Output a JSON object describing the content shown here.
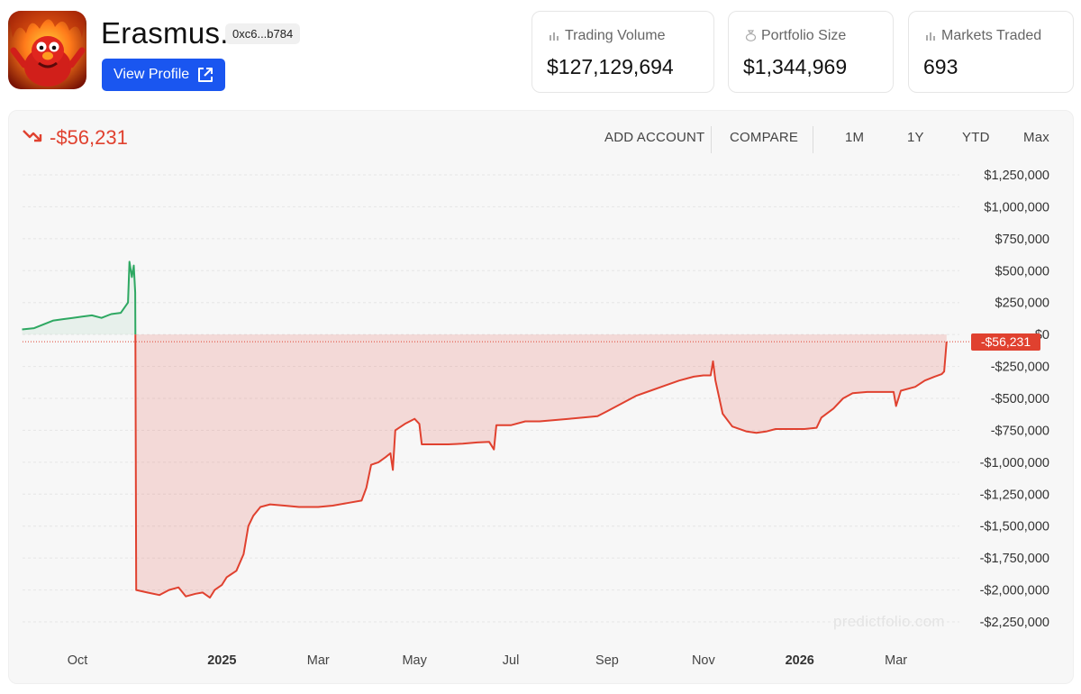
{
  "profile": {
    "name": "Erasmus.",
    "address": "0xc6...b784",
    "view_profile_label": "View Profile"
  },
  "stats": [
    {
      "label": "Trading Volume",
      "value": "$127,129,694",
      "icon": "bar-chart-icon"
    },
    {
      "label": "Portfolio Size",
      "value": "$1,344,969",
      "icon": "money-bag-icon"
    },
    {
      "label": "Markets Traded",
      "value": "693",
      "icon": "bar-chart-icon"
    }
  ],
  "pnl": {
    "change_text": "-$56,231",
    "trend_icon": "trend-down-icon",
    "negative_color": "#e0412f",
    "positive_color": "#2ea862"
  },
  "toolbar": {
    "add_account": "ADD ACCOUNT",
    "compare": "COMPARE",
    "ranges": [
      "1M",
      "1Y",
      "YTD",
      "Max"
    ]
  },
  "watermark": "predictfolio.com",
  "chart_data": {
    "type": "area",
    "current_value_label": "-$56,231",
    "y_ticks": [
      1250000,
      1000000,
      750000,
      500000,
      250000,
      0,
      -250000,
      -500000,
      -750000,
      -1000000,
      -1250000,
      -1500000,
      -1750000,
      -2000000,
      -2250000
    ],
    "y_tick_labels": [
      "$1,250,000",
      "$1,000,000",
      "$750,000",
      "$500,000",
      "$250,000",
      "$0",
      "-$250,000",
      "-$500,000",
      "-$750,000",
      "-$1,000,000",
      "-$1,250,000",
      "-$1,500,000",
      "-$1,750,000",
      "-$2,000,000",
      "-$2,250,000"
    ],
    "ylim": [
      -2250000,
      1250000
    ],
    "x_ticks": [
      {
        "label": "Oct",
        "t": 0.0,
        "bold": false
      },
      {
        "label": "2025",
        "t": 3.0,
        "bold": true
      },
      {
        "label": "Mar",
        "t": 5.0,
        "bold": false
      },
      {
        "label": "May",
        "t": 7.0,
        "bold": false
      },
      {
        "label": "Jul",
        "t": 9.0,
        "bold": false
      },
      {
        "label": "Sep",
        "t": 11.0,
        "bold": false
      },
      {
        "label": "Nov",
        "t": 13.0,
        "bold": false
      },
      {
        "label": "2026",
        "t": 15.0,
        "bold": true
      },
      {
        "label": "Mar",
        "t": 17.0,
        "bold": false
      }
    ],
    "x_axis_unit": "months since Oct 2024",
    "series": [
      {
        "points": [
          [
            -1.15,
            40000
          ],
          [
            -0.9,
            50000
          ],
          [
            -0.7,
            80000
          ],
          [
            -0.5,
            110000
          ],
          [
            -0.3,
            120000
          ],
          [
            -0.1,
            130000
          ],
          [
            0.1,
            140000
          ],
          [
            0.3,
            150000
          ],
          [
            0.5,
            130000
          ],
          [
            0.7,
            160000
          ],
          [
            0.9,
            170000
          ],
          [
            1.05,
            250000
          ],
          [
            1.08,
            570000
          ],
          [
            1.13,
            450000
          ],
          [
            1.17,
            540000
          ],
          [
            1.2,
            330000
          ],
          [
            1.22,
            -2000000
          ],
          [
            1.45,
            -2020000
          ],
          [
            1.7,
            -2040000
          ],
          [
            1.9,
            -2000000
          ],
          [
            2.1,
            -1980000
          ],
          [
            2.25,
            -2050000
          ],
          [
            2.45,
            -2030000
          ],
          [
            2.6,
            -2020000
          ],
          [
            2.75,
            -2060000
          ],
          [
            2.85,
            -2000000
          ],
          [
            3.0,
            -1960000
          ],
          [
            3.1,
            -1900000
          ],
          [
            3.3,
            -1850000
          ],
          [
            3.45,
            -1720000
          ],
          [
            3.55,
            -1500000
          ],
          [
            3.65,
            -1420000
          ],
          [
            3.8,
            -1350000
          ],
          [
            4.0,
            -1330000
          ],
          [
            4.3,
            -1340000
          ],
          [
            4.6,
            -1350000
          ],
          [
            5.0,
            -1350000
          ],
          [
            5.3,
            -1340000
          ],
          [
            5.6,
            -1320000
          ],
          [
            5.9,
            -1300000
          ],
          [
            6.0,
            -1200000
          ],
          [
            6.1,
            -1020000
          ],
          [
            6.25,
            -1000000
          ],
          [
            6.4,
            -960000
          ],
          [
            6.5,
            -930000
          ],
          [
            6.55,
            -1060000
          ],
          [
            6.6,
            -750000
          ],
          [
            6.8,
            -700000
          ],
          [
            7.0,
            -660000
          ],
          [
            7.1,
            -700000
          ],
          [
            7.15,
            -860000
          ],
          [
            7.4,
            -860000
          ],
          [
            7.7,
            -860000
          ],
          [
            8.0,
            -855000
          ],
          [
            8.3,
            -845000
          ],
          [
            8.55,
            -840000
          ],
          [
            8.65,
            -900000
          ],
          [
            8.7,
            -710000
          ],
          [
            9.0,
            -710000
          ],
          [
            9.3,
            -680000
          ],
          [
            9.6,
            -680000
          ],
          [
            9.9,
            -670000
          ],
          [
            10.2,
            -660000
          ],
          [
            10.5,
            -650000
          ],
          [
            10.8,
            -640000
          ],
          [
            11.0,
            -600000
          ],
          [
            11.3,
            -540000
          ],
          [
            11.6,
            -480000
          ],
          [
            11.9,
            -440000
          ],
          [
            12.2,
            -400000
          ],
          [
            12.5,
            -360000
          ],
          [
            12.8,
            -330000
          ],
          [
            13.0,
            -320000
          ],
          [
            13.15,
            -320000
          ],
          [
            13.2,
            -210000
          ],
          [
            13.25,
            -360000
          ],
          [
            13.4,
            -620000
          ],
          [
            13.6,
            -720000
          ],
          [
            13.9,
            -760000
          ],
          [
            14.1,
            -770000
          ],
          [
            14.3,
            -760000
          ],
          [
            14.5,
            -740000
          ],
          [
            14.8,
            -740000
          ],
          [
            15.1,
            -740000
          ],
          [
            15.35,
            -730000
          ],
          [
            15.45,
            -650000
          ],
          [
            15.7,
            -580000
          ],
          [
            15.9,
            -500000
          ],
          [
            16.1,
            -460000
          ],
          [
            16.4,
            -450000
          ],
          [
            16.7,
            -450000
          ],
          [
            16.95,
            -450000
          ],
          [
            17.0,
            -560000
          ],
          [
            17.1,
            -440000
          ],
          [
            17.4,
            -410000
          ],
          [
            17.6,
            -360000
          ],
          [
            17.8,
            -330000
          ],
          [
            17.95,
            -310000
          ],
          [
            18.0,
            -290000
          ],
          [
            18.05,
            -56231
          ]
        ]
      }
    ]
  }
}
